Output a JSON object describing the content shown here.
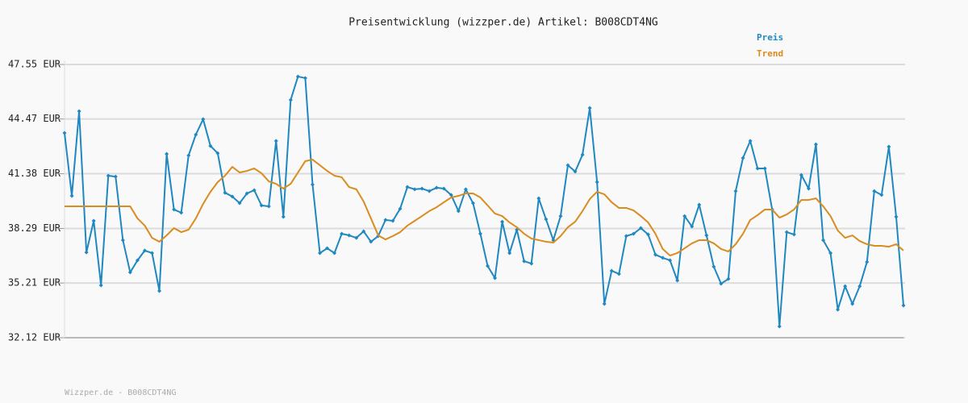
{
  "chart_data": {
    "type": "line",
    "title": "Preisentwicklung (wizzper.de) Artikel: B008CDT4NG",
    "footer": "Wizzper.de - B008CDT4NG",
    "legend": "top-right",
    "grid": true,
    "ylim": [
      32.12,
      47.55
    ],
    "yticks": [
      {
        "value": 32.12,
        "label": "32.12 EUR"
      },
      {
        "value": 35.21,
        "label": "35.21 EUR"
      },
      {
        "value": 38.29,
        "label": "38.29 EUR"
      },
      {
        "value": 41.38,
        "label": "41.38 EUR"
      },
      {
        "value": 44.47,
        "label": "44.47 EUR"
      },
      {
        "value": 47.55,
        "label": "47.55 EUR"
      }
    ],
    "series": [
      {
        "name": "Preis",
        "color": "#1f88c0",
        "markers": true,
        "values": [
          43.68,
          40.13,
          44.91,
          36.94,
          38.72,
          35.08,
          41.27,
          41.22,
          37.63,
          35.81,
          36.49,
          37.04,
          36.9,
          34.76,
          42.5,
          39.36,
          39.18,
          42.41,
          43.59,
          44.46,
          42.95,
          42.54,
          40.31,
          40.09,
          39.72,
          40.27,
          40.45,
          39.59,
          39.54,
          43.23,
          38.95,
          45.55,
          46.87,
          46.78,
          40.77,
          36.9,
          37.17,
          36.9,
          37.99,
          37.9,
          37.76,
          38.13,
          37.54,
          37.86,
          38.77,
          38.72,
          39.4,
          40.63,
          40.5,
          40.54,
          40.4,
          40.59,
          40.54,
          40.18,
          39.27,
          40.5,
          39.72,
          37.99,
          36.17,
          35.49,
          38.67,
          36.9,
          38.22,
          36.44,
          36.31,
          39.99,
          38.81,
          37.63,
          38.99,
          41.86,
          41.5,
          42.45,
          45.09,
          40.91,
          34.03,
          35.9,
          35.72,
          37.86,
          37.99,
          38.31,
          37.95,
          36.81,
          36.63,
          36.49,
          35.35,
          38.99,
          38.4,
          39.63,
          37.9,
          36.13,
          35.17,
          35.44,
          40.4,
          42.27,
          43.23,
          41.68,
          41.68,
          39.36,
          32.76,
          38.08,
          37.95,
          41.31,
          40.54,
          43.04,
          37.63,
          36.9,
          33.71,
          35.03,
          34.03,
          35.03,
          36.4,
          40.4,
          40.18,
          42.91,
          38.95,
          33.94
        ]
      },
      {
        "name": "Trend",
        "color": "#d98c1f",
        "markers": false,
        "values": [
          39.54,
          39.54,
          39.54,
          39.54,
          39.54,
          39.54,
          39.54,
          39.54,
          39.54,
          39.54,
          38.86,
          38.45,
          37.76,
          37.54,
          37.9,
          38.31,
          38.08,
          38.22,
          38.86,
          39.68,
          40.36,
          40.91,
          41.27,
          41.77,
          41.45,
          41.54,
          41.68,
          41.41,
          40.95,
          40.81,
          40.54,
          40.81,
          41.45,
          42.09,
          42.18,
          41.86,
          41.54,
          41.27,
          41.18,
          40.63,
          40.5,
          39.81,
          38.86,
          37.9,
          37.67,
          37.86,
          38.08,
          38.45,
          38.72,
          38.99,
          39.27,
          39.49,
          39.77,
          40.04,
          40.13,
          40.27,
          40.27,
          40.04,
          39.59,
          39.13,
          38.99,
          38.63,
          38.36,
          37.99,
          37.72,
          37.63,
          37.54,
          37.49,
          37.86,
          38.36,
          38.67,
          39.27,
          39.95,
          40.36,
          40.22,
          39.77,
          39.45,
          39.45,
          39.31,
          38.99,
          38.63,
          37.99,
          37.13,
          36.76,
          36.9,
          37.17,
          37.45,
          37.63,
          37.63,
          37.45,
          37.13,
          36.99,
          37.4,
          37.99,
          38.77,
          39.04,
          39.36,
          39.36,
          38.9,
          39.08,
          39.36,
          39.9,
          39.9,
          39.99,
          39.54,
          38.99,
          38.17,
          37.76,
          37.9,
          37.58,
          37.4,
          37.31,
          37.31,
          37.26,
          37.4,
          37.04
        ]
      }
    ]
  }
}
